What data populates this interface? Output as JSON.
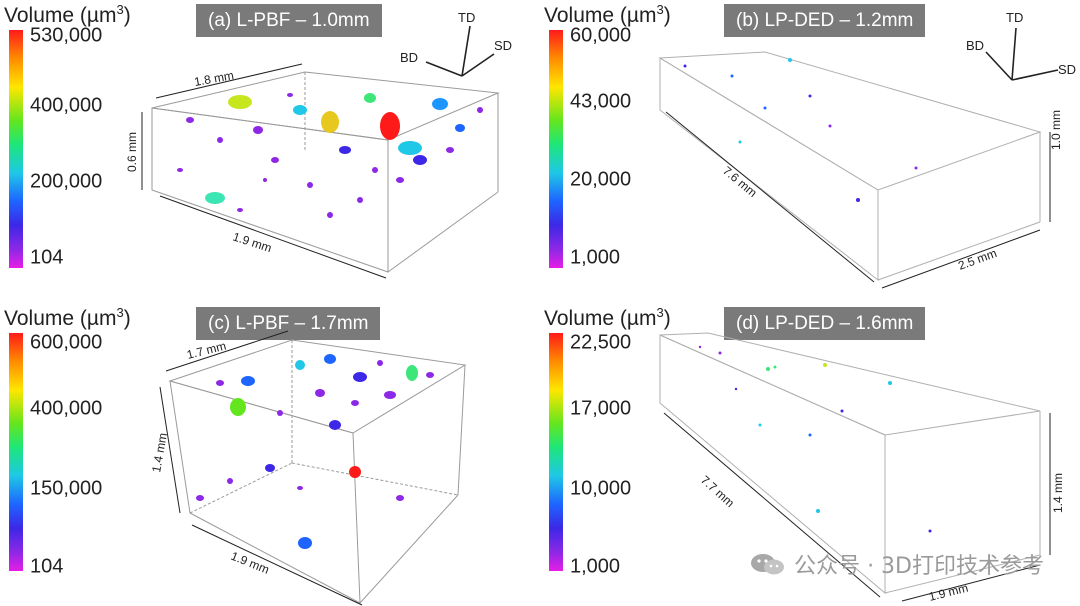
{
  "panels": [
    {
      "id": "a",
      "title": "(a) L-PBF – 1.0mm",
      "volume_label": "Volume (µm",
      "volume_unit_exp": "3",
      "volume_label_close": ")",
      "ticks": [
        "530,000",
        "400,000",
        "200,000",
        "104"
      ],
      "dims": [
        "1.8 mm",
        "0.6 mm",
        "1.9 mm"
      ],
      "axes": [
        "TD",
        "BD",
        "SD"
      ]
    },
    {
      "id": "b",
      "title": "(b) LP-DED – 1.2mm",
      "volume_label": "Volume (µm",
      "volume_unit_exp": "3",
      "volume_label_close": ")",
      "ticks": [
        "60,000",
        "43,000",
        "20,000",
        "1,000"
      ],
      "dims": [
        "7.6 mm",
        "1.0 mm",
        "2.5 mm"
      ],
      "axes": [
        "TD",
        "BD",
        "SD"
      ]
    },
    {
      "id": "c",
      "title": "(c) L-PBF – 1.7mm",
      "volume_label": "Volume (µm",
      "volume_unit_exp": "3",
      "volume_label_close": ")",
      "ticks": [
        "600,000",
        "400,000",
        "150,000",
        "104"
      ],
      "dims": [
        "1.7 mm",
        "1.4 mm",
        "1.9 mm"
      ]
    },
    {
      "id": "d",
      "title": "(d) LP-DED – 1.6mm",
      "volume_label": "Volume (µm",
      "volume_unit_exp": "3",
      "volume_label_close": ")",
      "ticks": [
        "22,500",
        "17,000",
        "10,000",
        "1,000"
      ],
      "dims": [
        "7.7 mm",
        "1.4 mm",
        "1.9 mm"
      ]
    }
  ],
  "watermark": "公众号 · 3D打印技术参考"
}
